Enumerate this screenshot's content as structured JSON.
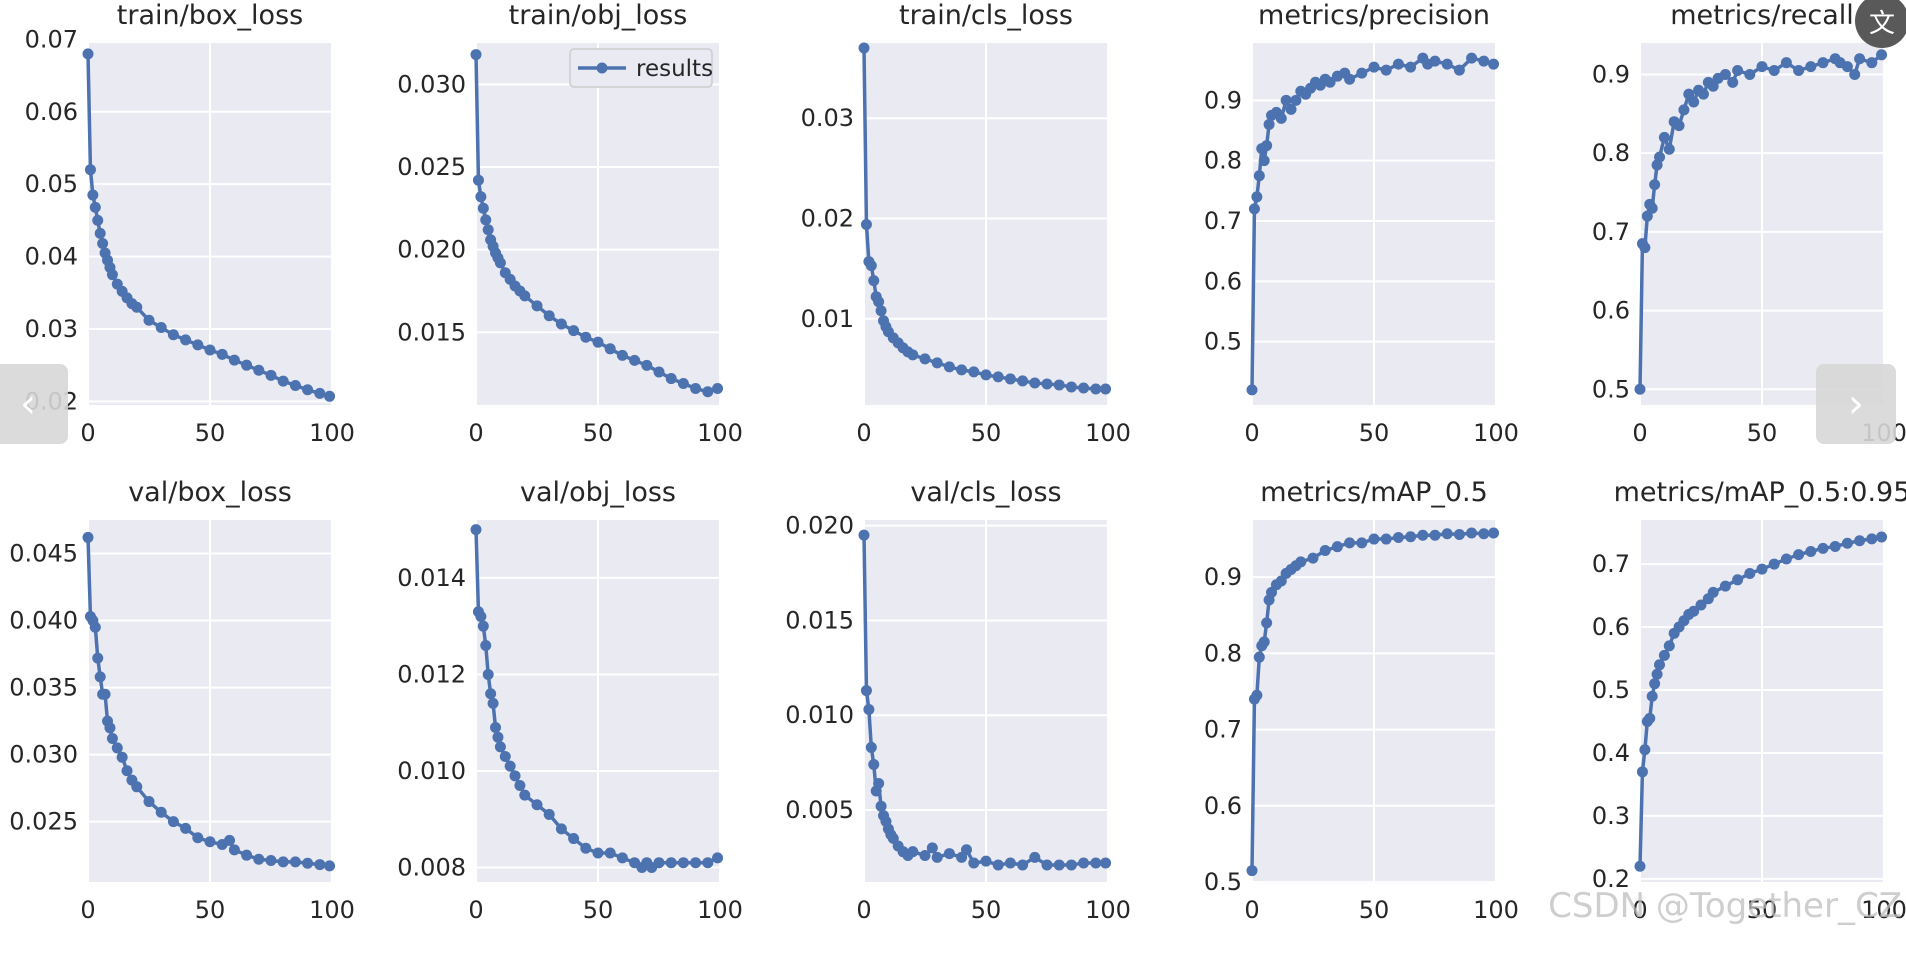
{
  "figure": {
    "series_name": "results",
    "colors": {
      "line": "#4c72b0",
      "axes_bg": "#eaeaf2",
      "grid": "#ffffff",
      "text": "#262626"
    }
  },
  "chart_data": [
    {
      "type": "line",
      "title": "train/box_loss",
      "xlim": [
        0,
        100
      ],
      "xticks": [
        0,
        50,
        100
      ],
      "ylim": [
        0.0195,
        0.0695
      ],
      "yticks": [
        0.02,
        0.03,
        0.04,
        0.05,
        0.06,
        0.07
      ],
      "ytick_labels": [
        "0.02",
        "0.03",
        "0.04",
        "0.05",
        "0.06",
        "0.07"
      ],
      "series": [
        {
          "name": "results",
          "x": [
            0,
            1,
            2,
            3,
            4,
            5,
            6,
            7,
            8,
            9,
            10,
            12,
            14,
            16,
            18,
            20,
            25,
            30,
            35,
            40,
            45,
            50,
            55,
            60,
            65,
            70,
            75,
            80,
            85,
            90,
            95,
            99
          ],
          "y": [
            0.068,
            0.052,
            0.0485,
            0.0468,
            0.045,
            0.0432,
            0.0418,
            0.0405,
            0.0395,
            0.0385,
            0.0375,
            0.0362,
            0.0352,
            0.0343,
            0.0335,
            0.033,
            0.0312,
            0.0302,
            0.0292,
            0.0285,
            0.0278,
            0.0271,
            0.0265,
            0.0257,
            0.025,
            0.0243,
            0.0236,
            0.0228,
            0.0222,
            0.0216,
            0.0211,
            0.0207
          ]
        }
      ]
    },
    {
      "type": "line",
      "title": "train/obj_loss",
      "xlim": [
        0,
        100
      ],
      "xticks": [
        0,
        50,
        100
      ],
      "ylim": [
        0.0106,
        0.0325
      ],
      "yticks": [
        0.015,
        0.02,
        0.025,
        0.03
      ],
      "ytick_labels": [
        "0.015",
        "0.020",
        "0.025",
        "0.030"
      ],
      "legend": "top-right",
      "series": [
        {
          "name": "results",
          "x": [
            0,
            1,
            2,
            3,
            4,
            5,
            6,
            7,
            8,
            9,
            10,
            12,
            14,
            16,
            18,
            20,
            25,
            30,
            35,
            40,
            45,
            50,
            55,
            60,
            65,
            70,
            75,
            80,
            85,
            90,
            95,
            99
          ],
          "y": [
            0.0318,
            0.0242,
            0.0232,
            0.0225,
            0.0218,
            0.0212,
            0.0206,
            0.0202,
            0.0198,
            0.0195,
            0.0192,
            0.0186,
            0.0182,
            0.0178,
            0.0175,
            0.0172,
            0.0166,
            0.016,
            0.0155,
            0.0151,
            0.0147,
            0.0144,
            0.014,
            0.0136,
            0.0133,
            0.013,
            0.0126,
            0.0122,
            0.0119,
            0.0116,
            0.0114,
            0.0116
          ]
        }
      ]
    },
    {
      "type": "line",
      "title": "train/cls_loss",
      "xlim": [
        0,
        100
      ],
      "xticks": [
        0,
        50,
        100
      ],
      "ylim": [
        0.0014,
        0.0375
      ],
      "yticks": [
        0.01,
        0.02,
        0.03
      ],
      "ytick_labels": [
        "0.01",
        "0.02",
        "0.03"
      ],
      "series": [
        {
          "name": "results",
          "x": [
            0,
            1,
            2,
            3,
            4,
            5,
            6,
            7,
            8,
            9,
            10,
            12,
            14,
            16,
            18,
            20,
            25,
            30,
            35,
            40,
            45,
            50,
            55,
            60,
            65,
            70,
            75,
            80,
            85,
            90,
            95,
            99
          ],
          "y": [
            0.037,
            0.0194,
            0.0157,
            0.0153,
            0.0138,
            0.0122,
            0.0117,
            0.0108,
            0.0098,
            0.0092,
            0.0087,
            0.0081,
            0.0076,
            0.0071,
            0.0067,
            0.0064,
            0.006,
            0.0056,
            0.0052,
            0.0049,
            0.0047,
            0.0044,
            0.0042,
            0.004,
            0.0038,
            0.0036,
            0.0035,
            0.0034,
            0.0032,
            0.0031,
            0.003,
            0.003
          ]
        }
      ]
    },
    {
      "type": "line",
      "title": "metrics/precision",
      "xlim": [
        0,
        100
      ],
      "xticks": [
        0,
        50,
        100
      ],
      "ylim": [
        0.395,
        0.995
      ],
      "yticks": [
        0.5,
        0.6,
        0.7,
        0.8,
        0.9
      ],
      "ytick_labels": [
        "0.5",
        "0.6",
        "0.7",
        "0.8",
        "0.9"
      ],
      "series": [
        {
          "name": "results",
          "x": [
            0,
            1,
            2,
            3,
            4,
            5,
            6,
            7,
            8,
            10,
            12,
            14,
            16,
            18,
            20,
            22,
            24,
            26,
            28,
            30,
            32,
            35,
            38,
            40,
            45,
            50,
            55,
            60,
            65,
            70,
            72,
            75,
            80,
            85,
            90,
            95,
            99
          ],
          "y": [
            0.42,
            0.72,
            0.74,
            0.775,
            0.82,
            0.8,
            0.825,
            0.86,
            0.875,
            0.88,
            0.87,
            0.9,
            0.885,
            0.9,
            0.915,
            0.91,
            0.92,
            0.93,
            0.925,
            0.935,
            0.93,
            0.94,
            0.945,
            0.935,
            0.945,
            0.955,
            0.95,
            0.96,
            0.955,
            0.97,
            0.96,
            0.965,
            0.96,
            0.95,
            0.97,
            0.965,
            0.96
          ]
        }
      ]
    },
    {
      "type": "line",
      "title": "metrics/recall",
      "xlim": [
        0,
        100
      ],
      "xticks": [
        0,
        50,
        100
      ],
      "ylim": [
        0.48,
        0.94
      ],
      "yticks": [
        0.5,
        0.6,
        0.7,
        0.8,
        0.9
      ],
      "ytick_labels": [
        "0.5",
        "0.6",
        "0.7",
        "0.8",
        "0.9"
      ],
      "series": [
        {
          "name": "results",
          "x": [
            0,
            1,
            2,
            3,
            4,
            5,
            6,
            7,
            8,
            10,
            12,
            14,
            16,
            18,
            20,
            22,
            24,
            26,
            28,
            30,
            32,
            35,
            38,
            40,
            45,
            50,
            55,
            60,
            65,
            70,
            75,
            80,
            82,
            85,
            88,
            90,
            95,
            99
          ],
          "y": [
            0.5,
            0.685,
            0.68,
            0.72,
            0.735,
            0.73,
            0.76,
            0.785,
            0.795,
            0.82,
            0.805,
            0.84,
            0.835,
            0.855,
            0.875,
            0.865,
            0.88,
            0.875,
            0.89,
            0.885,
            0.895,
            0.9,
            0.89,
            0.905,
            0.9,
            0.91,
            0.905,
            0.915,
            0.905,
            0.91,
            0.915,
            0.92,
            0.915,
            0.91,
            0.9,
            0.92,
            0.915,
            0.925
          ]
        }
      ]
    },
    {
      "type": "line",
      "title": "val/box_loss",
      "xlim": [
        0,
        100
      ],
      "xticks": [
        0,
        50,
        100
      ],
      "ylim": [
        0.0205,
        0.0475
      ],
      "yticks": [
        0.025,
        0.03,
        0.035,
        0.04,
        0.045
      ],
      "ytick_labels": [
        "0.025",
        "0.030",
        "0.035",
        "0.040",
        "0.045"
      ],
      "series": [
        {
          "name": "results",
          "x": [
            0,
            1,
            2,
            3,
            4,
            5,
            6,
            7,
            8,
            9,
            10,
            12,
            14,
            16,
            18,
            20,
            25,
            30,
            35,
            40,
            45,
            50,
            55,
            58,
            60,
            65,
            70,
            75,
            80,
            85,
            90,
            95,
            99
          ],
          "y": [
            0.0462,
            0.0403,
            0.04,
            0.0395,
            0.0372,
            0.0358,
            0.0345,
            0.0345,
            0.0325,
            0.032,
            0.0312,
            0.0305,
            0.0298,
            0.0288,
            0.0281,
            0.0276,
            0.0265,
            0.0257,
            0.025,
            0.0245,
            0.0238,
            0.0235,
            0.0233,
            0.0236,
            0.0229,
            0.0225,
            0.0222,
            0.0221,
            0.022,
            0.022,
            0.0219,
            0.0218,
            0.0217
          ]
        }
      ]
    },
    {
      "type": "line",
      "title": "val/obj_loss",
      "xlim": [
        0,
        100
      ],
      "xticks": [
        0,
        50,
        100
      ],
      "ylim": [
        0.0077,
        0.0152
      ],
      "yticks": [
        0.008,
        0.01,
        0.012,
        0.014
      ],
      "ytick_labels": [
        "0.008",
        "0.010",
        "0.012",
        "0.014"
      ],
      "series": [
        {
          "name": "results",
          "x": [
            0,
            1,
            2,
            3,
            4,
            5,
            6,
            7,
            8,
            9,
            10,
            12,
            14,
            16,
            18,
            20,
            25,
            30,
            35,
            40,
            45,
            50,
            55,
            60,
            65,
            68,
            70,
            72,
            75,
            80,
            85,
            90,
            95,
            99
          ],
          "y": [
            0.015,
            0.0133,
            0.0132,
            0.013,
            0.0126,
            0.012,
            0.0116,
            0.0114,
            0.0109,
            0.0107,
            0.0105,
            0.0103,
            0.0101,
            0.0099,
            0.0097,
            0.0095,
            0.0093,
            0.0091,
            0.0088,
            0.0086,
            0.0084,
            0.0083,
            0.0083,
            0.0082,
            0.0081,
            0.008,
            0.0081,
            0.008,
            0.0081,
            0.0081,
            0.0081,
            0.0081,
            0.0081,
            0.0082
          ]
        }
      ]
    },
    {
      "type": "line",
      "title": "val/cls_loss",
      "xlim": [
        0,
        100
      ],
      "xticks": [
        0,
        50,
        100
      ],
      "ylim": [
        0.0012,
        0.0203
      ],
      "yticks": [
        0.005,
        0.01,
        0.015,
        0.02
      ],
      "ytick_labels": [
        "0.005",
        "0.010",
        "0.015",
        "0.020"
      ],
      "series": [
        {
          "name": "results",
          "x": [
            0,
            1,
            2,
            3,
            4,
            5,
            6,
            7,
            8,
            9,
            10,
            11,
            12,
            14,
            16,
            18,
            20,
            25,
            28,
            30,
            35,
            40,
            42,
            45,
            50,
            55,
            60,
            65,
            70,
            75,
            80,
            85,
            90,
            95,
            99
          ],
          "y": [
            0.0195,
            0.0113,
            0.0103,
            0.0083,
            0.0074,
            0.006,
            0.0064,
            0.0052,
            0.0047,
            0.0044,
            0.004,
            0.0037,
            0.0035,
            0.0031,
            0.0028,
            0.0026,
            0.0028,
            0.0026,
            0.003,
            0.0025,
            0.0027,
            0.0025,
            0.0029,
            0.0022,
            0.0023,
            0.0021,
            0.0022,
            0.0021,
            0.0025,
            0.0021,
            0.0021,
            0.0021,
            0.0022,
            0.0022,
            0.0022
          ]
        }
      ]
    },
    {
      "type": "line",
      "title": "metrics/mAP_0.5",
      "xlim": [
        0,
        100
      ],
      "xticks": [
        0,
        50,
        100
      ],
      "ylim": [
        0.5,
        0.975
      ],
      "yticks": [
        0.5,
        0.6,
        0.7,
        0.8,
        0.9
      ],
      "ytick_labels": [
        "0.5",
        "0.6",
        "0.7",
        "0.8",
        "0.9"
      ],
      "series": [
        {
          "name": "results",
          "x": [
            0,
            1,
            2,
            3,
            4,
            5,
            6,
            7,
            8,
            10,
            12,
            14,
            16,
            18,
            20,
            25,
            30,
            35,
            40,
            45,
            50,
            55,
            60,
            65,
            70,
            75,
            80,
            85,
            90,
            95,
            99
          ],
          "y": [
            0.515,
            0.74,
            0.745,
            0.795,
            0.81,
            0.815,
            0.84,
            0.87,
            0.88,
            0.89,
            0.895,
            0.905,
            0.91,
            0.915,
            0.92,
            0.925,
            0.935,
            0.94,
            0.945,
            0.945,
            0.95,
            0.95,
            0.952,
            0.953,
            0.955,
            0.955,
            0.957,
            0.956,
            0.958,
            0.957,
            0.958
          ]
        }
      ]
    },
    {
      "type": "line",
      "title": "metrics/mAP_0.5:0.95",
      "xlim": [
        0,
        100
      ],
      "xticks": [
        0,
        50,
        100
      ],
      "ylim": [
        0.195,
        0.77
      ],
      "yticks": [
        0.2,
        0.3,
        0.4,
        0.5,
        0.6,
        0.7
      ],
      "ytick_labels": [
        "0.2",
        "0.3",
        "0.4",
        "0.5",
        "0.6",
        "0.7"
      ],
      "series": [
        {
          "name": "results",
          "x": [
            0,
            1,
            2,
            3,
            4,
            5,
            6,
            7,
            8,
            10,
            12,
            14,
            16,
            18,
            20,
            22,
            25,
            28,
            30,
            35,
            40,
            45,
            50,
            55,
            60,
            65,
            70,
            75,
            80,
            85,
            90,
            95,
            99
          ],
          "y": [
            0.22,
            0.37,
            0.405,
            0.45,
            0.455,
            0.49,
            0.51,
            0.525,
            0.54,
            0.555,
            0.57,
            0.59,
            0.6,
            0.61,
            0.62,
            0.625,
            0.635,
            0.645,
            0.655,
            0.665,
            0.675,
            0.685,
            0.692,
            0.7,
            0.708,
            0.715,
            0.72,
            0.725,
            0.728,
            0.733,
            0.737,
            0.74,
            0.743
          ]
        }
      ]
    }
  ],
  "overlay": {
    "prev_symbol": "‹",
    "next_symbol": "›",
    "translate_symbol": "文",
    "watermark": "CSDN @Together_CZ"
  }
}
